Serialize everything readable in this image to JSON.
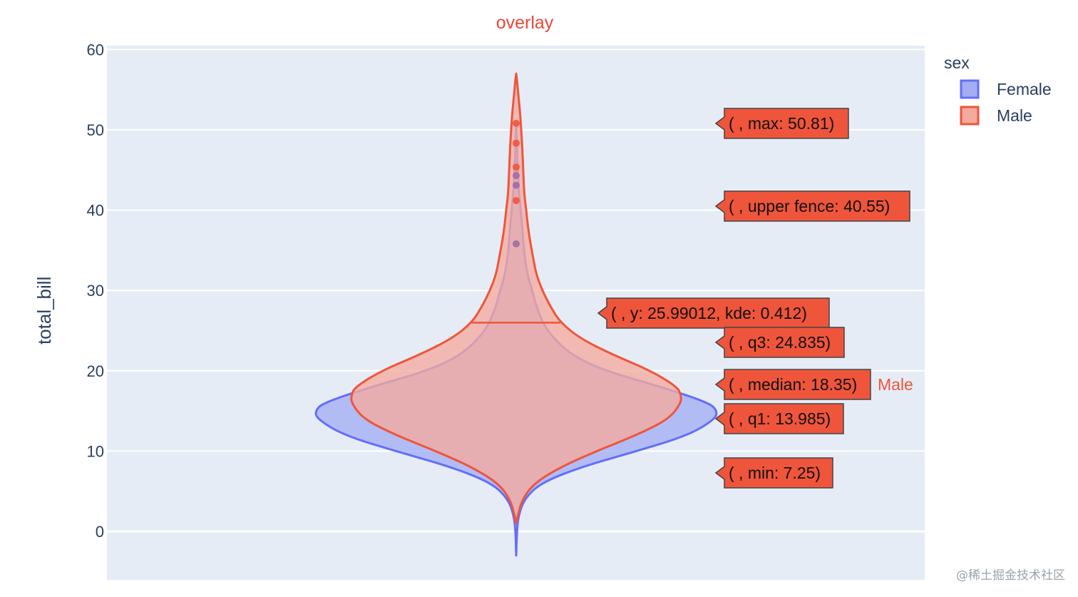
{
  "chart_data": {
    "type": "violin",
    "title": "overlay",
    "title_color": "#e8483a",
    "xlabel": "",
    "ylabel": "total_bill",
    "ylim": [
      -6,
      60.5
    ],
    "yticks": [
      0,
      10,
      20,
      30,
      40,
      50,
      60
    ],
    "grid": true,
    "violinmode": "overlay",
    "legend": {
      "title": "sex",
      "placement": "top-right",
      "items": [
        {
          "name": "Female",
          "fill": "#a3aef5",
          "stroke": "#636efa"
        },
        {
          "name": "Male",
          "fill": "#f5aa9e",
          "stroke": "#ef553b"
        }
      ]
    },
    "series": [
      {
        "name": "Female",
        "fill": "#a3aef5",
        "stroke": "#636efa",
        "density": [
          [
            -3.0,
            0.0
          ],
          [
            0,
            0.003
          ],
          [
            2,
            0.012
          ],
          [
            4,
            0.04
          ],
          [
            6,
            0.12
          ],
          [
            8,
            0.32
          ],
          [
            10,
            0.6
          ],
          [
            12,
            0.86
          ],
          [
            14,
            0.99
          ],
          [
            15,
            1.0
          ],
          [
            16,
            0.96
          ],
          [
            18,
            0.72
          ],
          [
            20,
            0.44
          ],
          [
            22,
            0.27
          ],
          [
            25,
            0.15
          ],
          [
            28,
            0.1
          ],
          [
            30,
            0.08
          ],
          [
            32,
            0.055
          ],
          [
            35,
            0.038
          ],
          [
            38,
            0.03
          ],
          [
            40,
            0.022
          ],
          [
            43,
            0.012
          ],
          [
            46,
            0.006
          ],
          [
            49,
            0.003
          ],
          [
            50.8,
            0.0
          ]
        ],
        "outliers": [
          44.3,
          43.1,
          35.8
        ]
      },
      {
        "name": "Male",
        "fill": "#f5aa9e",
        "stroke": "#ef553b",
        "density": [
          [
            1.0,
            0.0
          ],
          [
            2,
            0.008
          ],
          [
            4,
            0.03
          ],
          [
            6,
            0.09
          ],
          [
            8,
            0.22
          ],
          [
            10,
            0.4
          ],
          [
            12,
            0.6
          ],
          [
            14,
            0.76
          ],
          [
            16,
            0.82
          ],
          [
            17,
            0.82
          ],
          [
            18,
            0.8
          ],
          [
            20,
            0.67
          ],
          [
            22,
            0.48
          ],
          [
            24,
            0.32
          ],
          [
            26,
            0.22
          ],
          [
            28,
            0.17
          ],
          [
            30,
            0.13
          ],
          [
            32,
            0.1
          ],
          [
            34,
            0.085
          ],
          [
            36,
            0.07
          ],
          [
            38,
            0.058
          ],
          [
            40,
            0.05
          ],
          [
            42,
            0.04
          ],
          [
            45,
            0.035
          ],
          [
            48,
            0.03
          ],
          [
            50,
            0.025
          ],
          [
            52,
            0.02
          ],
          [
            54,
            0.012
          ],
          [
            56,
            0.005
          ],
          [
            57,
            0.0
          ]
        ],
        "outliers": [
          50.81,
          48.33,
          45.35,
          41.19
        ],
        "kde_line": {
          "y": 25.99012,
          "kde": 0.412
        },
        "stats": {
          "max": 50.81,
          "upper_fence": 40.55,
          "q3": 24.835,
          "median": 18.35,
          "q1": 13.985,
          "min": 7.25
        }
      }
    ],
    "hover_labels": [
      {
        "text": "( , max: 50.81)",
        "y": 50.81
      },
      {
        "text": "( , upper fence: 40.55)",
        "y": 40.55
      },
      {
        "text": "( , y: 25.99012, kde: 0.412)",
        "y": 25.99012
      },
      {
        "text": "( , q3: 24.835)",
        "y": 24.835
      },
      {
        "text": "( , median: 18.35)",
        "y": 18.35
      },
      {
        "text": "( , q1: 13.985)",
        "y": 13.985
      },
      {
        "text": "( , min: 7.25)",
        "y": 7.25
      }
    ],
    "trace_label": "Male",
    "watermark": "@稀土掘金技术社区"
  }
}
